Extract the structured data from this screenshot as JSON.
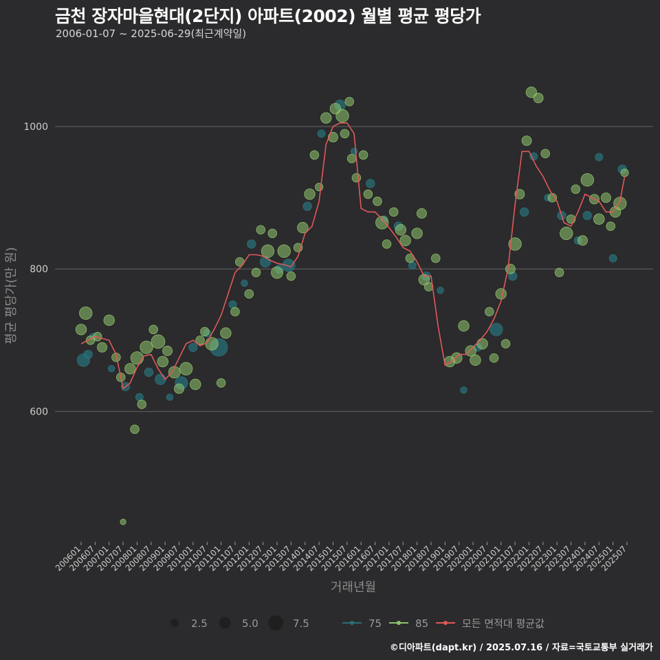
{
  "title": "금천 장자마을현대(2단지) 아파트(2002) 월별 평균 평당가",
  "subtitle": "2006-01-07 ~ 2025-06-29(최근계약일)",
  "caption": "©디아파트(dapt.kr) / 2025.07.16 / 자료=국토교통부 실거래가",
  "colors": {
    "background": "#2b2a2c",
    "grid": "#5a5a5a",
    "series_75": "#2a6f77",
    "series_85": "#8fc46d",
    "average_line": "#e05a5a"
  },
  "chart_data": {
    "type": "scatter",
    "xlabel": "거래년월",
    "ylabel": "평균 평당가(만 원)",
    "ylim": [
      420,
      1110
    ],
    "yticks": [
      600,
      800,
      1000
    ],
    "xlim": [
      "2006-01",
      "2025-07"
    ],
    "xtick_labels": [
      "200601",
      "200607",
      "200701",
      "200707",
      "200801",
      "200807",
      "200901",
      "200907",
      "201001",
      "201007",
      "201101",
      "201107",
      "201201",
      "201207",
      "201301",
      "201307",
      "201401",
      "201407",
      "201501",
      "201507",
      "201601",
      "201607",
      "201701",
      "201707",
      "201801",
      "201807",
      "201901",
      "201907",
      "202001",
      "202007",
      "202101",
      "202107",
      "202201",
      "202207",
      "202301",
      "202307",
      "202401",
      "202407",
      "202501",
      "202507"
    ],
    "legend": {
      "size_labels": [
        "2.5",
        "5.0",
        "7.5"
      ],
      "series_labels": [
        "75",
        "85",
        "모든 면적대 평균값"
      ]
    },
    "average_line": {
      "name": "모든 면적대 평균값",
      "x": [
        "2006-01",
        "2006-07",
        "2007-01",
        "2007-04",
        "2007-07",
        "2007-10",
        "2008-01",
        "2008-04",
        "2008-07",
        "2008-10",
        "2009-01",
        "2009-04",
        "2009-07",
        "2009-10",
        "2010-01",
        "2010-04",
        "2010-07",
        "2010-10",
        "2011-01",
        "2011-04",
        "2011-07",
        "2011-10",
        "2012-01",
        "2012-04",
        "2012-07",
        "2012-10",
        "2013-01",
        "2013-04",
        "2013-07",
        "2013-10",
        "2014-01",
        "2014-04",
        "2014-07",
        "2014-10",
        "2015-01",
        "2015-04",
        "2015-07",
        "2015-10",
        "2016-01",
        "2016-04",
        "2016-07",
        "2016-10",
        "2017-01",
        "2017-04",
        "2017-07",
        "2017-10",
        "2018-01",
        "2018-04",
        "2018-07",
        "2018-10",
        "2019-01",
        "2019-04",
        "2019-07",
        "2019-10",
        "2020-01",
        "2020-04",
        "2020-07",
        "2020-10",
        "2021-01",
        "2021-04",
        "2021-07",
        "2021-10",
        "2022-01",
        "2022-04",
        "2022-07",
        "2022-10",
        "2023-01",
        "2023-04",
        "2023-07",
        "2023-10",
        "2024-01",
        "2024-04",
        "2024-07",
        "2024-10",
        "2025-01",
        "2025-04",
        "2025-06"
      ],
      "values": [
        695,
        705,
        700,
        680,
        632,
        640,
        662,
        678,
        680,
        660,
        645,
        655,
        675,
        695,
        700,
        692,
        697,
        715,
        735,
        765,
        795,
        805,
        820,
        820,
        818,
        812,
        808,
        806,
        803,
        818,
        850,
        860,
        895,
        975,
        1000,
        1005,
        1005,
        990,
        885,
        880,
        880,
        870,
        858,
        845,
        830,
        825,
        810,
        790,
        790,
        720,
        665,
        670,
        680,
        680,
        690,
        700,
        712,
        730,
        755,
        800,
        890,
        965,
        965,
        945,
        930,
        910,
        895,
        865,
        860,
        880,
        905,
        900,
        895,
        880,
        880,
        895,
        930
      ]
    },
    "series": [
      {
        "name": "75",
        "color": "#2a6f77",
        "points": [
          {
            "x": "2006-02",
            "y": 672,
            "size": 5.0
          },
          {
            "x": "2006-04",
            "y": 680,
            "size": 3.0
          },
          {
            "x": "2006-06",
            "y": 705,
            "size": 2.0
          },
          {
            "x": "2007-02",
            "y": 660,
            "size": 2.0
          },
          {
            "x": "2007-08",
            "y": 635,
            "size": 3.0
          },
          {
            "x": "2008-02",
            "y": 620,
            "size": 2.5
          },
          {
            "x": "2008-06",
            "y": 655,
            "size": 3.0
          },
          {
            "x": "2008-11",
            "y": 645,
            "size": 4.0
          },
          {
            "x": "2009-03",
            "y": 620,
            "size": 2.0
          },
          {
            "x": "2009-08",
            "y": 640,
            "size": 5.0
          },
          {
            "x": "2010-01",
            "y": 690,
            "size": 3.0
          },
          {
            "x": "2010-07",
            "y": 710,
            "size": 2.5
          },
          {
            "x": "2010-12",
            "y": 690,
            "size": 7.5
          },
          {
            "x": "2011-06",
            "y": 750,
            "size": 2.5
          },
          {
            "x": "2011-11",
            "y": 780,
            "size": 2.0
          },
          {
            "x": "2012-02",
            "y": 835,
            "size": 3.0
          },
          {
            "x": "2012-08",
            "y": 810,
            "size": 4.0
          },
          {
            "x": "2013-02",
            "y": 800,
            "size": 3.0
          },
          {
            "x": "2013-06",
            "y": 805,
            "size": 5.0
          },
          {
            "x": "2014-02",
            "y": 888,
            "size": 3.0
          },
          {
            "x": "2014-08",
            "y": 990,
            "size": 2.5
          },
          {
            "x": "2015-04",
            "y": 1030,
            "size": 4.0
          },
          {
            "x": "2015-10",
            "y": 965,
            "size": 2.0
          },
          {
            "x": "2016-05",
            "y": 920,
            "size": 3.0
          },
          {
            "x": "2016-11",
            "y": 870,
            "size": 2.0
          },
          {
            "x": "2017-05",
            "y": 860,
            "size": 3.0
          },
          {
            "x": "2017-11",
            "y": 805,
            "size": 2.5
          },
          {
            "x": "2018-05",
            "y": 790,
            "size": 3.0
          },
          {
            "x": "2018-11",
            "y": 770,
            "size": 2.0
          },
          {
            "x": "2019-09",
            "y": 630,
            "size": 2.0
          },
          {
            "x": "2020-03",
            "y": 690,
            "size": 2.5
          },
          {
            "x": "2020-11",
            "y": 715,
            "size": 5.0
          },
          {
            "x": "2021-06",
            "y": 790,
            "size": 3.0
          },
          {
            "x": "2021-11",
            "y": 880,
            "size": 3.0
          },
          {
            "x": "2022-03",
            "y": 958,
            "size": 2.5
          },
          {
            "x": "2022-09",
            "y": 900,
            "size": 2.0
          },
          {
            "x": "2023-03",
            "y": 875,
            "size": 3.0
          },
          {
            "x": "2023-10",
            "y": 840,
            "size": 2.5
          },
          {
            "x": "2024-02",
            "y": 875,
            "size": 3.0
          },
          {
            "x": "2024-07",
            "y": 957,
            "size": 2.5
          },
          {
            "x": "2025-01",
            "y": 815,
            "size": 2.5
          },
          {
            "x": "2025-05",
            "y": 940,
            "size": 3.0
          }
        ]
      },
      {
        "name": "85",
        "color": "#8fc46d",
        "points": [
          {
            "x": "2006-01",
            "y": 715,
            "size": 4.0
          },
          {
            "x": "2006-03",
            "y": 738,
            "size": 5.0
          },
          {
            "x": "2006-05",
            "y": 700,
            "size": 3.0
          },
          {
            "x": "2006-08",
            "y": 705,
            "size": 3.0
          },
          {
            "x": "2006-10",
            "y": 690,
            "size": 3.5
          },
          {
            "x": "2007-01",
            "y": 728,
            "size": 4.0
          },
          {
            "x": "2007-04",
            "y": 676,
            "size": 3.0
          },
          {
            "x": "2007-06",
            "y": 648,
            "size": 3.0
          },
          {
            "x": "2007-07",
            "y": 445,
            "size": 1.5
          },
          {
            "x": "2007-10",
            "y": 660,
            "size": 4.0
          },
          {
            "x": "2007-12",
            "y": 575,
            "size": 3.0
          },
          {
            "x": "2008-01",
            "y": 675,
            "size": 5.0
          },
          {
            "x": "2008-03",
            "y": 610,
            "size": 3.0
          },
          {
            "x": "2008-05",
            "y": 690,
            "size": 5.0
          },
          {
            "x": "2008-08",
            "y": 715,
            "size": 3.0
          },
          {
            "x": "2008-10",
            "y": 698,
            "size": 5.5
          },
          {
            "x": "2008-12",
            "y": 670,
            "size": 4.0
          },
          {
            "x": "2009-02",
            "y": 685,
            "size": 3.5
          },
          {
            "x": "2009-05",
            "y": 655,
            "size": 4.5
          },
          {
            "x": "2009-07",
            "y": 632,
            "size": 3.5
          },
          {
            "x": "2009-10",
            "y": 660,
            "size": 5.0
          },
          {
            "x": "2010-02",
            "y": 638,
            "size": 4.0
          },
          {
            "x": "2010-04",
            "y": 700,
            "size": 3.0
          },
          {
            "x": "2010-06",
            "y": 712,
            "size": 3.0
          },
          {
            "x": "2010-09",
            "y": 695,
            "size": 5.0
          },
          {
            "x": "2011-01",
            "y": 640,
            "size": 3.0
          },
          {
            "x": "2011-03",
            "y": 710,
            "size": 4.0
          },
          {
            "x": "2011-07",
            "y": 740,
            "size": 3.0
          },
          {
            "x": "2011-09",
            "y": 810,
            "size": 3.0
          },
          {
            "x": "2012-01",
            "y": 765,
            "size": 3.0
          },
          {
            "x": "2012-04",
            "y": 795,
            "size": 3.0
          },
          {
            "x": "2012-06",
            "y": 855,
            "size": 3.0
          },
          {
            "x": "2012-09",
            "y": 825,
            "size": 5.0
          },
          {
            "x": "2012-11",
            "y": 850,
            "size": 3.0
          },
          {
            "x": "2013-01",
            "y": 795,
            "size": 4.5
          },
          {
            "x": "2013-04",
            "y": 825,
            "size": 5.0
          },
          {
            "x": "2013-07",
            "y": 790,
            "size": 3.0
          },
          {
            "x": "2013-10",
            "y": 830,
            "size": 3.0
          },
          {
            "x": "2013-12",
            "y": 858,
            "size": 4.0
          },
          {
            "x": "2014-03",
            "y": 905,
            "size": 4.0
          },
          {
            "x": "2014-05",
            "y": 960,
            "size": 3.0
          },
          {
            "x": "2014-07",
            "y": 915,
            "size": 2.5
          },
          {
            "x": "2014-10",
            "y": 1012,
            "size": 4.0
          },
          {
            "x": "2015-01",
            "y": 985,
            "size": 3.5
          },
          {
            "x": "2015-02",
            "y": 1025,
            "size": 4.0
          },
          {
            "x": "2015-05",
            "y": 1015,
            "size": 5.0
          },
          {
            "x": "2015-06",
            "y": 990,
            "size": 3.0
          },
          {
            "x": "2015-08",
            "y": 1035,
            "size": 3.0
          },
          {
            "x": "2015-09",
            "y": 955,
            "size": 3.0
          },
          {
            "x": "2015-11",
            "y": 928,
            "size": 3.0
          },
          {
            "x": "2016-02",
            "y": 960,
            "size": 3.0
          },
          {
            "x": "2016-04",
            "y": 905,
            "size": 3.0
          },
          {
            "x": "2016-08",
            "y": 895,
            "size": 3.0
          },
          {
            "x": "2016-10",
            "y": 865,
            "size": 5.0
          },
          {
            "x": "2016-12",
            "y": 835,
            "size": 3.0
          },
          {
            "x": "2017-03",
            "y": 880,
            "size": 3.0
          },
          {
            "x": "2017-06",
            "y": 855,
            "size": 4.0
          },
          {
            "x": "2017-08",
            "y": 840,
            "size": 4.0
          },
          {
            "x": "2017-10",
            "y": 815,
            "size": 3.0
          },
          {
            "x": "2018-01",
            "y": 850,
            "size": 4.0
          },
          {
            "x": "2018-03",
            "y": 878,
            "size": 3.5
          },
          {
            "x": "2018-04",
            "y": 785,
            "size": 4.0
          },
          {
            "x": "2018-06",
            "y": 775,
            "size": 3.0
          },
          {
            "x": "2018-09",
            "y": 815,
            "size": 3.0
          },
          {
            "x": "2019-03",
            "y": 670,
            "size": 4.0
          },
          {
            "x": "2019-06",
            "y": 675,
            "size": 4.0
          },
          {
            "x": "2019-09",
            "y": 720,
            "size": 4.0
          },
          {
            "x": "2019-12",
            "y": 685,
            "size": 4.0
          },
          {
            "x": "2020-02",
            "y": 672,
            "size": 4.0
          },
          {
            "x": "2020-05",
            "y": 695,
            "size": 4.0
          },
          {
            "x": "2020-08",
            "y": 740,
            "size": 3.0
          },
          {
            "x": "2020-10",
            "y": 675,
            "size": 3.0
          },
          {
            "x": "2021-01",
            "y": 765,
            "size": 4.0
          },
          {
            "x": "2021-03",
            "y": 695,
            "size": 3.0
          },
          {
            "x": "2021-05",
            "y": 800,
            "size": 3.5
          },
          {
            "x": "2021-07",
            "y": 835,
            "size": 5.0
          },
          {
            "x": "2021-09",
            "y": 905,
            "size": 3.5
          },
          {
            "x": "2021-12",
            "y": 980,
            "size": 3.5
          },
          {
            "x": "2022-02",
            "y": 1048,
            "size": 4.0
          },
          {
            "x": "2022-05",
            "y": 1040,
            "size": 3.5
          },
          {
            "x": "2022-08",
            "y": 962,
            "size": 3.0
          },
          {
            "x": "2022-11",
            "y": 900,
            "size": 3.0
          },
          {
            "x": "2023-02",
            "y": 795,
            "size": 3.0
          },
          {
            "x": "2023-05",
            "y": 850,
            "size": 5.0
          },
          {
            "x": "2023-07",
            "y": 870,
            "size": 3.0
          },
          {
            "x": "2023-09",
            "y": 912,
            "size": 3.0
          },
          {
            "x": "2023-12",
            "y": 840,
            "size": 3.5
          },
          {
            "x": "2024-02",
            "y": 925,
            "size": 5.0
          },
          {
            "x": "2024-05",
            "y": 898,
            "size": 3.5
          },
          {
            "x": "2024-07",
            "y": 870,
            "size": 4.0
          },
          {
            "x": "2024-10",
            "y": 900,
            "size": 3.5
          },
          {
            "x": "2024-12",
            "y": 860,
            "size": 3.0
          },
          {
            "x": "2025-02",
            "y": 880,
            "size": 4.0
          },
          {
            "x": "2025-04",
            "y": 892,
            "size": 5.0
          },
          {
            "x": "2025-06",
            "y": 935,
            "size": 2.5
          }
        ]
      }
    ]
  }
}
